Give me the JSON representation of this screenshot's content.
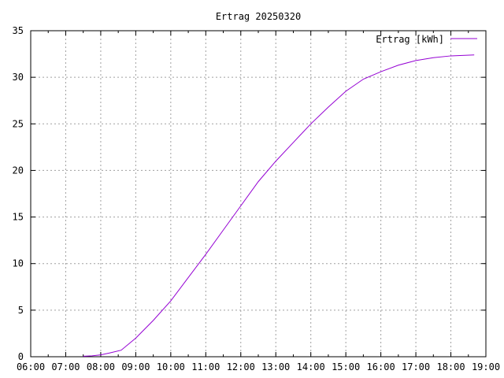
{
  "chart_data": {
    "type": "line",
    "title": "Ertrag 20250320",
    "xlabel": "",
    "ylabel": "",
    "xlim": [
      "06:00",
      "19:00"
    ],
    "ylim": [
      0,
      35
    ],
    "x_ticks": [
      "06:00",
      "07:00",
      "08:00",
      "09:00",
      "10:00",
      "11:00",
      "12:00",
      "13:00",
      "14:00",
      "15:00",
      "16:00",
      "17:00",
      "18:00",
      "19:00"
    ],
    "y_ticks": [
      "0",
      "5",
      "10",
      "15",
      "20",
      "25",
      "30",
      "35"
    ],
    "grid": true,
    "legend_position": "top-right",
    "series": [
      {
        "name": "Ertrag [kWh]",
        "color": "#9400d3",
        "points": [
          [
            "07:30",
            0.05
          ],
          [
            "07:45",
            0.1
          ],
          [
            "08:00",
            0.2
          ],
          [
            "08:15",
            0.4
          ],
          [
            "08:35",
            0.7
          ],
          [
            "09:00",
            2.0
          ],
          [
            "09:30",
            3.9
          ],
          [
            "10:00",
            6.0
          ],
          [
            "10:30",
            8.5
          ],
          [
            "11:00",
            11.0
          ],
          [
            "11:30",
            13.6
          ],
          [
            "12:00",
            16.2
          ],
          [
            "12:30",
            18.8
          ],
          [
            "13:00",
            21.0
          ],
          [
            "13:30",
            23.0
          ],
          [
            "14:00",
            25.0
          ],
          [
            "14:30",
            26.8
          ],
          [
            "15:00",
            28.5
          ],
          [
            "15:30",
            29.8
          ],
          [
            "16:00",
            30.6
          ],
          [
            "16:30",
            31.3
          ],
          [
            "17:00",
            31.8
          ],
          [
            "17:30",
            32.1
          ],
          [
            "18:00",
            32.3
          ],
          [
            "18:40",
            32.4
          ]
        ]
      }
    ]
  }
}
